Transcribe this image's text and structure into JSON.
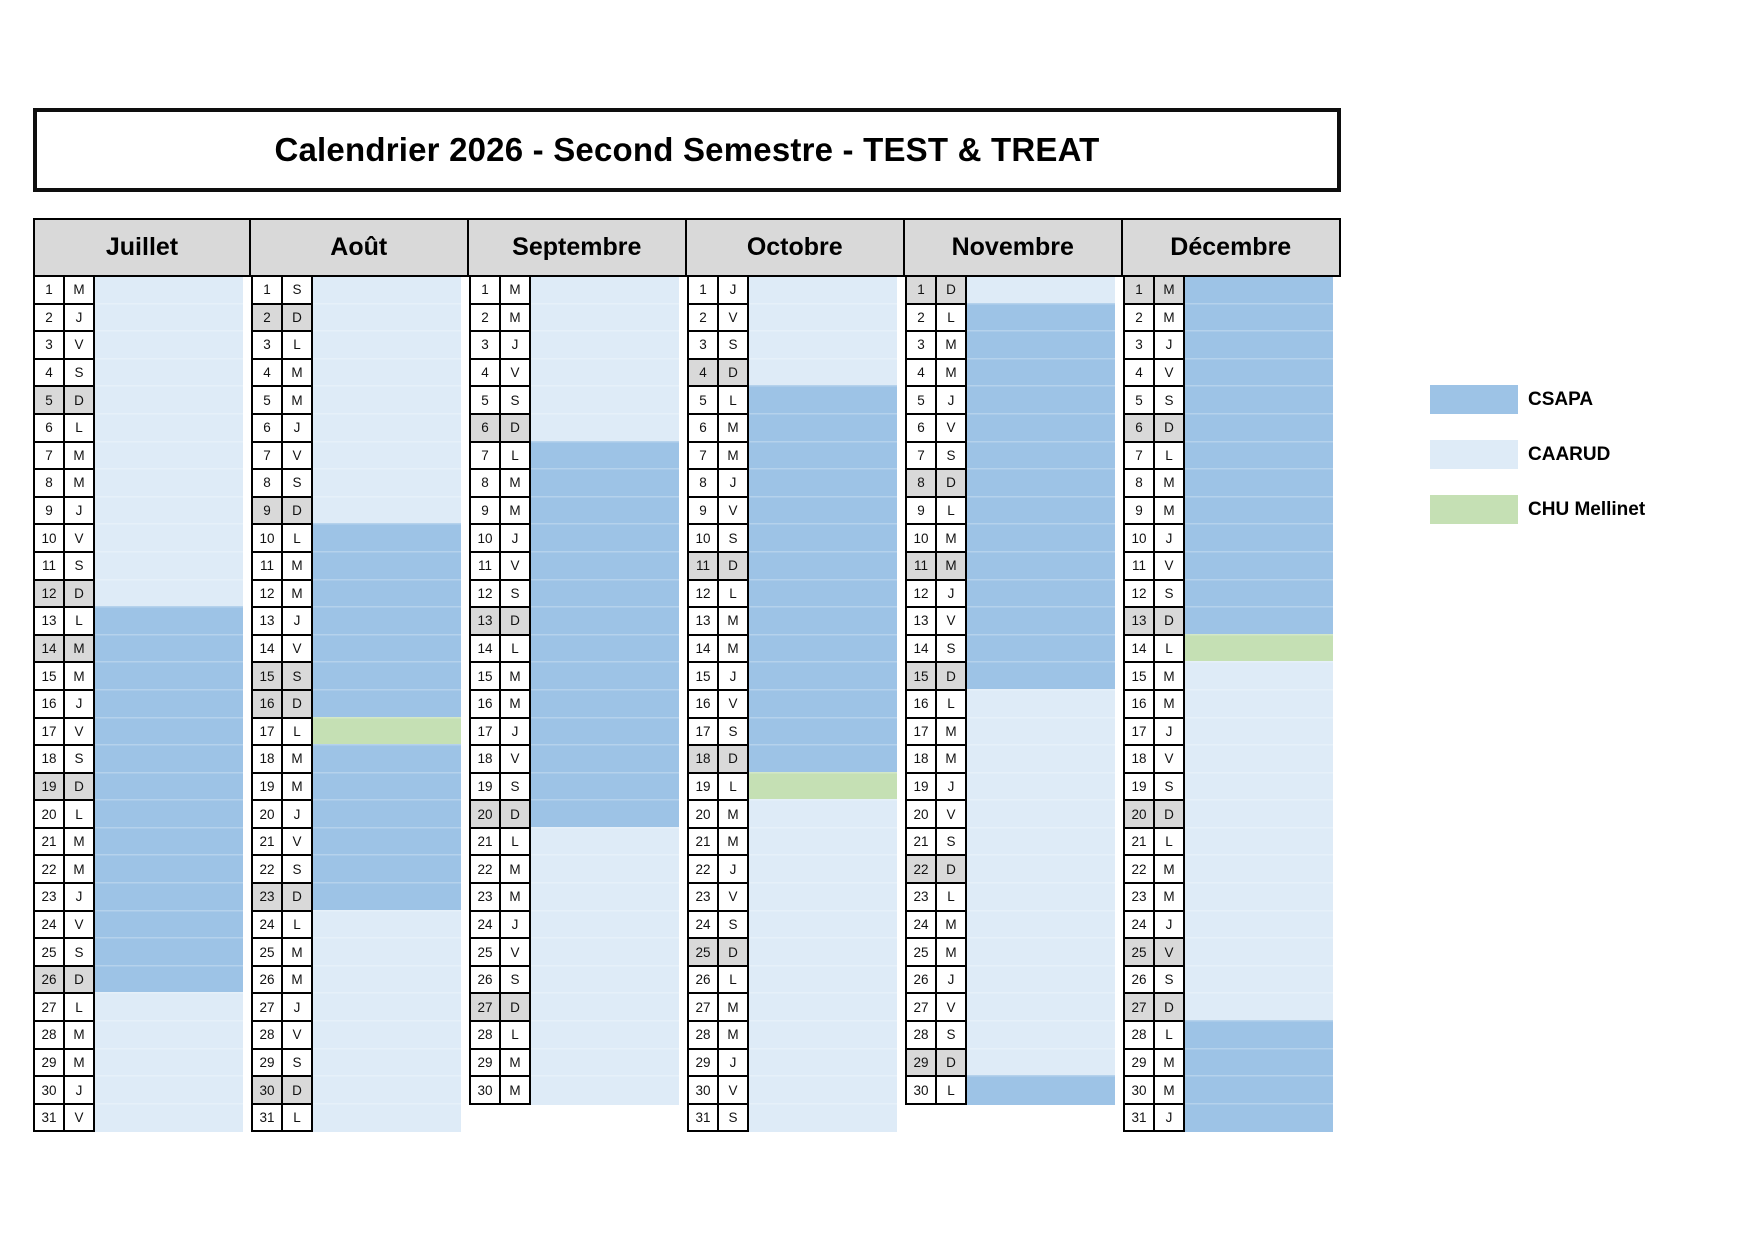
{
  "title": "Calendrier 2026 - Second Semestre - TEST & TREAT",
  "colors": {
    "csapa": "#9DC3E6",
    "caarud": "#DEEBF7",
    "chu": "#C5E0B4",
    "shaded": "#D9D9D9",
    "grid": "#000000"
  },
  "legend": [
    {
      "key": "csapa",
      "label": "CSAPA"
    },
    {
      "key": "caarud",
      "label": "CAARUD"
    },
    {
      "key": "chu",
      "label": "CHU Mellinet"
    }
  ],
  "months": [
    {
      "name": "Juillet",
      "letters": "MJVSDLMMJVSDLMMJVSDLMMJVSDLMMJV",
      "shaded": [
        5,
        12,
        14,
        19,
        26
      ],
      "bands": [
        [
          1,
          12,
          "caarud"
        ],
        [
          13,
          26,
          "csapa"
        ],
        [
          27,
          31,
          "caarud"
        ]
      ]
    },
    {
      "name": "Août",
      "letters": "SDLMMJVSDLMMJVSDLMMJVSDLMMJVSDL",
      "shaded": [
        2,
        9,
        15,
        16,
        23,
        30
      ],
      "bands": [
        [
          1,
          9,
          "caarud"
        ],
        [
          10,
          16,
          "csapa"
        ],
        [
          17,
          17,
          "chu"
        ],
        [
          18,
          23,
          "csapa"
        ],
        [
          24,
          31,
          "caarud"
        ]
      ]
    },
    {
      "name": "Septembre",
      "letters": "MMJVSDLMMJVSDLMMJVSDLMMJVSDLMM",
      "shaded": [
        6,
        13,
        20,
        27
      ],
      "bands": [
        [
          1,
          6,
          "caarud"
        ],
        [
          7,
          20,
          "csapa"
        ],
        [
          21,
          30,
          "caarud"
        ]
      ]
    },
    {
      "name": "Octobre",
      "letters": "JVSDLMMJVSDLMMJVSDLMMJVSDLMMJVS",
      "shaded": [
        4,
        11,
        18,
        25
      ],
      "bands": [
        [
          1,
          4,
          "caarud"
        ],
        [
          5,
          18,
          "csapa"
        ],
        [
          19,
          19,
          "chu"
        ],
        [
          20,
          31,
          "caarud"
        ]
      ]
    },
    {
      "name": "Novembre",
      "letters": "DLMMJVSDLMMJVSDLMMJVSDLMMJVSDL",
      "shaded": [
        1,
        8,
        11,
        15,
        22,
        29
      ],
      "bands": [
        [
          1,
          1,
          "caarud"
        ],
        [
          2,
          15,
          "csapa"
        ],
        [
          16,
          29,
          "caarud"
        ],
        [
          30,
          30,
          "csapa"
        ]
      ]
    },
    {
      "name": "Décembre",
      "letters": "MMJVSDLMMJVSDLMMJVSDLMMJVSDLMMJ",
      "shaded": [
        1,
        6,
        13,
        20,
        25,
        27
      ],
      "bands": [
        [
          1,
          13,
          "csapa"
        ],
        [
          14,
          14,
          "chu"
        ],
        [
          15,
          27,
          "caarud"
        ],
        [
          28,
          31,
          "csapa"
        ]
      ]
    }
  ]
}
